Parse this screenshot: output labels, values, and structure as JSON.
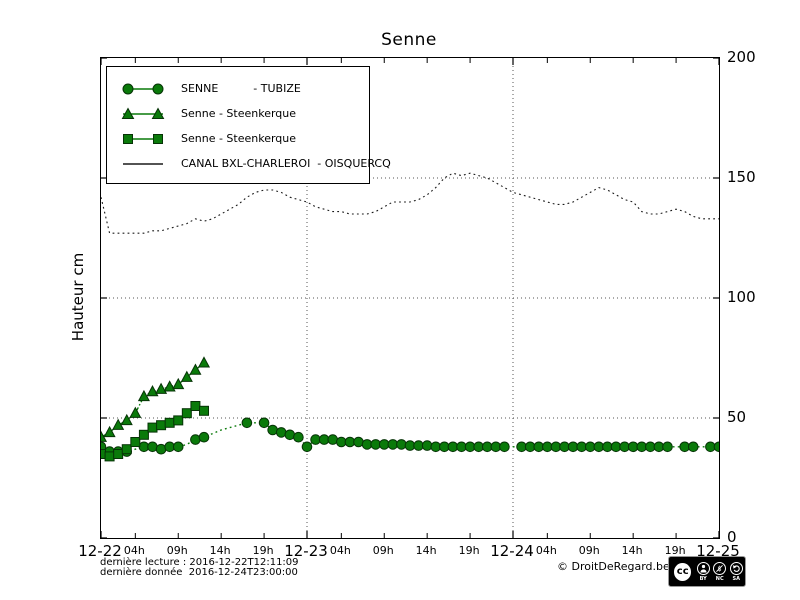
{
  "title": "Senne",
  "ylabel": "Hauteur cm",
  "legend": {
    "items": [
      {
        "marker": "circle",
        "label": "SENNE          - TUBIZE"
      },
      {
        "marker": "triangle",
        "label": "Senne - Steenkerque"
      },
      {
        "marker": "square",
        "label": "Senne - Steenkerque"
      },
      {
        "marker": "line",
        "label": "CANAL BXL-CHARLEROI  - OISQUERCQ"
      }
    ]
  },
  "footer": {
    "line1": "dernière lecture : 2016-12-22T12:11:09",
    "line2": "dernière donnée  2016-12-24T23:00:00",
    "copyright": "© DroitDeRegard.be",
    "cc": {
      "logo": "cc",
      "labels": [
        "BY",
        "NC",
        "SA"
      ]
    }
  },
  "colors": {
    "series_green": "#0a7a0a",
    "marker_edge": "#063306",
    "canal_black": "#1a1a1a",
    "grid_gray": "#555555"
  },
  "chart_data": {
    "type": "line",
    "title": "Senne",
    "ylabel": "Hauteur cm",
    "ylim": [
      0,
      200
    ],
    "yticks": [
      0,
      50,
      100,
      150,
      200
    ],
    "ygrid": [
      50,
      100,
      150
    ],
    "x_unit": "hours since 2016-12-22T00:00",
    "xlim_hours": [
      0,
      72
    ],
    "xgrid_hours": [
      24,
      48
    ],
    "day_ticks": [
      {
        "h": 0,
        "label": "12-22"
      },
      {
        "h": 24,
        "label": "12-23"
      },
      {
        "h": 48,
        "label": "12-24"
      },
      {
        "h": 72,
        "label": "12-25"
      }
    ],
    "hour_ticks": [
      {
        "h": 4,
        "label": "04h"
      },
      {
        "h": 9,
        "label": "09h"
      },
      {
        "h": 14,
        "label": "14h"
      },
      {
        "h": 19,
        "label": "19h"
      },
      {
        "h": 28,
        "label": "04h"
      },
      {
        "h": 33,
        "label": "09h"
      },
      {
        "h": 38,
        "label": "14h"
      },
      {
        "h": 43,
        "label": "19h"
      },
      {
        "h": 52,
        "label": "04h"
      },
      {
        "h": 57,
        "label": "09h"
      },
      {
        "h": 62,
        "label": "14h"
      },
      {
        "h": 67,
        "label": "19h"
      }
    ],
    "series": [
      {
        "name": "SENNE - TUBIZE",
        "marker": "circle",
        "color": "#0a7a0a",
        "linestyle": "dotted",
        "x_start_hour": 0,
        "x_step_hours": 1,
        "values": [
          38,
          36,
          36,
          36,
          37,
          38,
          38,
          37,
          38,
          38,
          39,
          41,
          42,
          43.5,
          45,
          46,
          47,
          48,
          48,
          48,
          45,
          44,
          43,
          42,
          38,
          41,
          41,
          41,
          40,
          40,
          40,
          39,
          39,
          39,
          39,
          39,
          38.5,
          38.5,
          38.5,
          38,
          38,
          38,
          38,
          38,
          38,
          38,
          38,
          38,
          38,
          38,
          38,
          38,
          38,
          38,
          38,
          38,
          38,
          38,
          38,
          38,
          38,
          38,
          38,
          38,
          38,
          38,
          38,
          38,
          38,
          38,
          38,
          38,
          38
        ],
        "missing_marker_hours": [
          4,
          10,
          13,
          14,
          15,
          16,
          18,
          48,
          67,
          70
        ]
      },
      {
        "name": "Senne - Steenkerque",
        "marker": "triangle",
        "color": "#0a7a0a",
        "linestyle": "dashdot",
        "x_start_hour": 0,
        "x_step_hours": 1,
        "values": [
          42,
          44,
          47,
          49,
          52,
          59,
          61,
          62,
          63,
          64,
          67,
          70,
          73
        ],
        "missing_marker_hours": []
      },
      {
        "name": "Senne - Steenkerque",
        "marker": "square",
        "color": "#0a7a0a",
        "linestyle": "dashdot",
        "x_start_hour": 0,
        "x_step_hours": 1,
        "values": [
          35,
          34,
          35,
          37,
          40,
          43,
          46,
          47,
          48,
          49,
          52,
          55,
          53
        ],
        "missing_marker_hours": []
      },
      {
        "name": "CANAL BXL-CHARLEROI - OISQUERCQ",
        "marker": "none",
        "color": "#1a1a1a",
        "linestyle": "dotted",
        "x_start_hour": 0,
        "x_step_hours": 1,
        "values": [
          142,
          127,
          127,
          127,
          127,
          127,
          128,
          128,
          129,
          130,
          131,
          133,
          132,
          133,
          135,
          137,
          139,
          142,
          144,
          145,
          145,
          144,
          142,
          141,
          140,
          138,
          137,
          136,
          136,
          135,
          135,
          135,
          136,
          138,
          140,
          140,
          140,
          141,
          143,
          146,
          150,
          152,
          151,
          152,
          151,
          150,
          148,
          146,
          144,
          143,
          142,
          141,
          140,
          139,
          139,
          140,
          142,
          144,
          146,
          145,
          143,
          141,
          140,
          136,
          135,
          135,
          136,
          137,
          136,
          134,
          133,
          133,
          133
        ],
        "missing_marker_hours": []
      }
    ]
  }
}
